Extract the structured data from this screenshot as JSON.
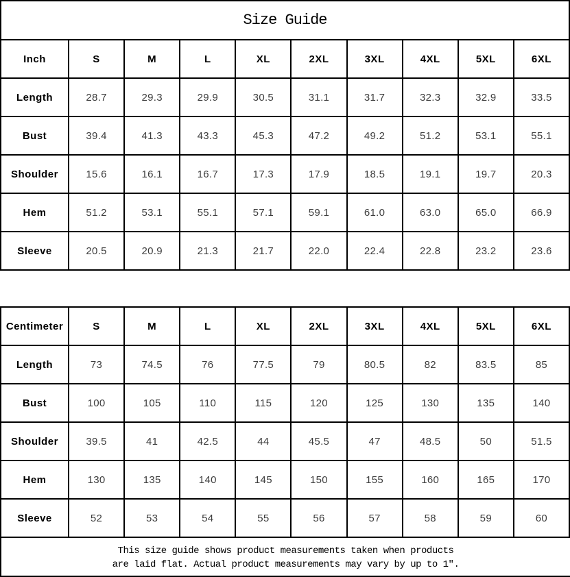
{
  "title": "Size Guide",
  "tables": [
    {
      "unit_label": "Inch",
      "size_headers": [
        "S",
        "M",
        "L",
        "XL",
        "2XL",
        "3XL",
        "4XL",
        "5XL",
        "6XL"
      ],
      "rows": [
        {
          "label": "Length",
          "values": [
            "28.7",
            "29.3",
            "29.9",
            "30.5",
            "31.1",
            "31.7",
            "32.3",
            "32.9",
            "33.5"
          ]
        },
        {
          "label": "Bust",
          "values": [
            "39.4",
            "41.3",
            "43.3",
            "45.3",
            "47.2",
            "49.2",
            "51.2",
            "53.1",
            "55.1"
          ]
        },
        {
          "label": "Shoulder",
          "values": [
            "15.6",
            "16.1",
            "16.7",
            "17.3",
            "17.9",
            "18.5",
            "19.1",
            "19.7",
            "20.3"
          ]
        },
        {
          "label": "Hem",
          "values": [
            "51.2",
            "53.1",
            "55.1",
            "57.1",
            "59.1",
            "61.0",
            "63.0",
            "65.0",
            "66.9"
          ]
        },
        {
          "label": "Sleeve",
          "values": [
            "20.5",
            "20.9",
            "21.3",
            "21.7",
            "22.0",
            "22.4",
            "22.8",
            "23.2",
            "23.6"
          ]
        }
      ]
    },
    {
      "unit_label": "Centimeter",
      "size_headers": [
        "S",
        "M",
        "L",
        "XL",
        "2XL",
        "3XL",
        "4XL",
        "5XL",
        "6XL"
      ],
      "rows": [
        {
          "label": "Length",
          "values": [
            "73",
            "74.5",
            "76",
            "77.5",
            "79",
            "80.5",
            "82",
            "83.5",
            "85"
          ]
        },
        {
          "label": "Bust",
          "values": [
            "100",
            "105",
            "110",
            "115",
            "120",
            "125",
            "130",
            "135",
            "140"
          ]
        },
        {
          "label": "Shoulder",
          "values": [
            "39.5",
            "41",
            "42.5",
            "44",
            "45.5",
            "47",
            "48.5",
            "50",
            "51.5"
          ]
        },
        {
          "label": "Hem",
          "values": [
            "130",
            "135",
            "140",
            "145",
            "150",
            "155",
            "160",
            "165",
            "170"
          ]
        },
        {
          "label": "Sleeve",
          "values": [
            "52",
            "53",
            "54",
            "55",
            "56",
            "57",
            "58",
            "59",
            "60"
          ]
        }
      ]
    }
  ],
  "footer_note": {
    "line1": "This size guide shows product measurements taken when products",
    "line2": "are laid flat. Actual product measurements may vary by up to 1″.",
    "full_text": "This size guide shows product measurements taken when products are laid flat. Actual product measurements may vary by up to 1″."
  },
  "colors": {
    "border": "#000000",
    "header_text": "#000000",
    "value_text": "#3d3d3d",
    "background": "#ffffff"
  }
}
